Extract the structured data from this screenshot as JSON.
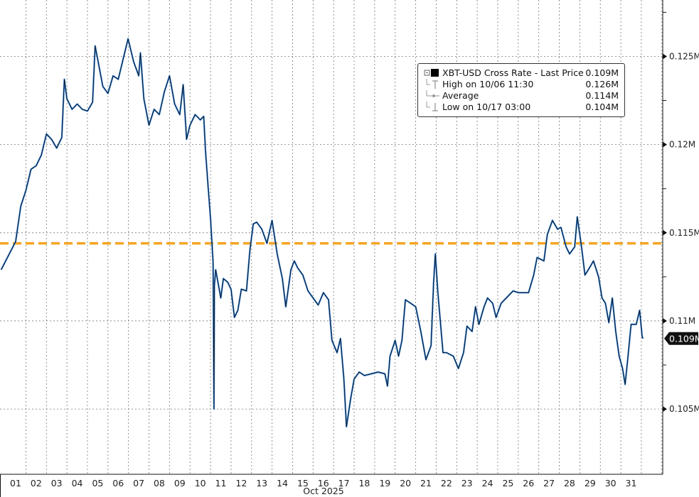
{
  "chart_data": {
    "type": "line",
    "xlabel": "Oct 2025",
    "ylabel": "",
    "x_tick_labels": [
      "01",
      "02",
      "03",
      "04",
      "05",
      "06",
      "07",
      "08",
      "09",
      "10",
      "11",
      "12",
      "13",
      "14",
      "15",
      "16",
      "17",
      "18",
      "19",
      "20",
      "21",
      "22",
      "23",
      "24",
      "25",
      "26",
      "27",
      "28",
      "29",
      "30",
      "31"
    ],
    "y_ticks": [
      0.105,
      0.11,
      0.115,
      0.12,
      0.125
    ],
    "y_tick_labels": [
      "0.105M",
      "0.11M",
      "0.115M",
      "0.12M",
      "0.125M"
    ],
    "ylim": [
      0.1013,
      0.1282
    ],
    "grid": true,
    "legend_placement": "top-right",
    "legend": [
      {
        "label": "XBT-USD Cross Rate - Last Price",
        "value": "0.109M",
        "icon": "filled-square"
      },
      {
        "label": "High on 10/06 11:30",
        "value": "0.126M",
        "icon": "high-marker"
      },
      {
        "label": "Average",
        "value": "0.114M",
        "icon": "average-marker"
      },
      {
        "label": "Low on 10/17 03:00",
        "value": "0.104M",
        "icon": "low-marker"
      }
    ],
    "last_price_label": "0.109M",
    "last_price": 0.109,
    "average": 0.1144,
    "colors": {
      "series": "#2f7fd8",
      "series_outline": "#0a0a0a",
      "average": "#f5a623",
      "grid": "#777777"
    },
    "series": [
      {
        "unit": "M USD",
        "points": [
          [
            "09/30 07:00",
            0.1129
          ],
          [
            "10/01 00:00",
            0.1145
          ],
          [
            "10/01 06:00",
            0.1165
          ],
          [
            "10/01 12:00",
            0.1174
          ],
          [
            "10/01 18:00",
            0.1186
          ],
          [
            "10/02 00:00",
            0.1188
          ],
          [
            "10/02 06:00",
            0.1194
          ],
          [
            "10/02 12:00",
            0.1206
          ],
          [
            "10/02 18:00",
            0.1203
          ],
          [
            "10/03 00:00",
            0.1198
          ],
          [
            "10/03 06:00",
            0.1204
          ],
          [
            "10/03 09:00",
            0.1237
          ],
          [
            "10/03 12:00",
            0.1226
          ],
          [
            "10/03 18:00",
            0.122
          ],
          [
            "10/04 00:00",
            0.1223
          ],
          [
            "10/04 06:00",
            0.122
          ],
          [
            "10/04 12:00",
            0.1219
          ],
          [
            "10/04 18:00",
            0.1224
          ],
          [
            "10/04 21:00",
            0.1256
          ],
          [
            "10/05 06:00",
            0.1233
          ],
          [
            "10/05 12:00",
            0.1229
          ],
          [
            "10/05 18:00",
            0.1239
          ],
          [
            "10/06 00:00",
            0.1237
          ],
          [
            "10/06 06:00",
            0.1249
          ],
          [
            "10/06 11:30",
            0.126
          ],
          [
            "10/06 18:00",
            0.1247
          ],
          [
            "10/07 00:00",
            0.1239
          ],
          [
            "10/07 02:00",
            0.1252
          ],
          [
            "10/07 06:00",
            0.1226
          ],
          [
            "10/07 12:00",
            0.1211
          ],
          [
            "10/07 18:00",
            0.122
          ],
          [
            "10/08 00:00",
            0.1217
          ],
          [
            "10/08 06:00",
            0.123
          ],
          [
            "10/08 12:00",
            0.1239
          ],
          [
            "10/08 18:00",
            0.1223
          ],
          [
            "10/09 00:00",
            0.1217
          ],
          [
            "10/09 04:00",
            0.1234
          ],
          [
            "10/09 08:00",
            0.1203
          ],
          [
            "10/09 12:00",
            0.1211
          ],
          [
            "10/09 18:00",
            0.1217
          ],
          [
            "10/10 00:00",
            0.1214
          ],
          [
            "10/10 04:00",
            0.1216
          ],
          [
            "10/10 06:00",
            0.1197
          ],
          [
            "10/10 09:00",
            0.1177
          ],
          [
            "10/10 12:00",
            0.1158
          ],
          [
            "10/10 15:00",
            0.1133
          ],
          [
            "10/10 16:00",
            0.105
          ],
          [
            "10/10 16:30",
            0.112
          ],
          [
            "10/10 18:00",
            0.1129
          ],
          [
            "10/11 00:00",
            0.1113
          ],
          [
            "10/11 03:00",
            0.1124
          ],
          [
            "10/11 08:00",
            0.1122
          ],
          [
            "10/11 12:00",
            0.1118
          ],
          [
            "10/11 16:00",
            0.1102
          ],
          [
            "10/11 20:00",
            0.1106
          ],
          [
            "10/12 00:00",
            0.1118
          ],
          [
            "10/12 06:00",
            0.1117
          ],
          [
            "10/12 10:00",
            0.114
          ],
          [
            "10/12 14:00",
            0.1155
          ],
          [
            "10/12 18:00",
            0.1156
          ],
          [
            "10/13 00:00",
            0.1152
          ],
          [
            "10/13 06:00",
            0.1144
          ],
          [
            "10/13 12:00",
            0.1157
          ],
          [
            "10/13 18:00",
            0.1138
          ],
          [
            "10/14 00:00",
            0.1124
          ],
          [
            "10/14 04:00",
            0.1108
          ],
          [
            "10/14 10:00",
            0.1129
          ],
          [
            "10/14 14:00",
            0.1134
          ],
          [
            "10/14 18:00",
            0.113
          ],
          [
            "10/15 00:00",
            0.1126
          ],
          [
            "10/15 06:00",
            0.1117
          ],
          [
            "10/15 12:00",
            0.1113
          ],
          [
            "10/15 18:00",
            0.1109
          ],
          [
            "10/16 00:00",
            0.1116
          ],
          [
            "10/16 06:00",
            0.1112
          ],
          [
            "10/16 10:00",
            0.1089
          ],
          [
            "10/16 16:00",
            0.1082
          ],
          [
            "10/16 20:00",
            0.109
          ],
          [
            "10/17 00:00",
            0.1067
          ],
          [
            "10/17 03:00",
            0.104
          ],
          [
            "10/17 08:00",
            0.1056
          ],
          [
            "10/17 12:00",
            0.1067
          ],
          [
            "10/17 18:00",
            0.1071
          ],
          [
            "10/18 00:00",
            0.1069
          ],
          [
            "10/18 08:00",
            0.107
          ],
          [
            "10/18 16:00",
            0.1071
          ],
          [
            "10/19 00:00",
            0.107
          ],
          [
            "10/19 03:00",
            0.1063
          ],
          [
            "10/19 06:00",
            0.108
          ],
          [
            "10/19 12:00",
            0.1089
          ],
          [
            "10/19 16:00",
            0.108
          ],
          [
            "10/19 20:00",
            0.1089
          ],
          [
            "10/20 00:00",
            0.1112
          ],
          [
            "10/20 06:00",
            0.111
          ],
          [
            "10/20 12:00",
            0.1108
          ],
          [
            "10/20 18:00",
            0.1094
          ],
          [
            "10/21 00:00",
            0.1078
          ],
          [
            "10/21 06:00",
            0.1086
          ],
          [
            "10/21 09:00",
            0.1122
          ],
          [
            "10/21 11:00",
            0.1138
          ],
          [
            "10/21 14:00",
            0.1116
          ],
          [
            "10/21 20:00",
            0.1082
          ],
          [
            "10/22 00:00",
            0.1082
          ],
          [
            "10/22 08:00",
            0.108
          ],
          [
            "10/22 14:00",
            0.1073
          ],
          [
            "10/22 20:00",
            0.1082
          ],
          [
            "10/23 00:00",
            0.1097
          ],
          [
            "10/23 06:00",
            0.1094
          ],
          [
            "10/23 10:00",
            0.1108
          ],
          [
            "10/23 14:00",
            0.1098
          ],
          [
            "10/23 20:00",
            0.1108
          ],
          [
            "10/24 00:00",
            0.1113
          ],
          [
            "10/24 06:00",
            0.111
          ],
          [
            "10/24 10:00",
            0.1102
          ],
          [
            "10/24 16:00",
            0.111
          ],
          [
            "10/24 22:00",
            0.1113
          ],
          [
            "10/25 06:00",
            0.1117
          ],
          [
            "10/25 12:00",
            0.1116
          ],
          [
            "10/25 20:00",
            0.1116
          ],
          [
            "10/26 00:00",
            0.1116
          ],
          [
            "10/26 06:00",
            0.1126
          ],
          [
            "10/26 10:00",
            0.1136
          ],
          [
            "10/26 18:00",
            0.1134
          ],
          [
            "10/26 22:00",
            0.1149
          ],
          [
            "10/27 04:00",
            0.1157
          ],
          [
            "10/27 10:00",
            0.1152
          ],
          [
            "10/27 14:00",
            0.1153
          ],
          [
            "10/27 20:00",
            0.1142
          ],
          [
            "10/28 00:00",
            0.1138
          ],
          [
            "10/28 06:00",
            0.1142
          ],
          [
            "10/28 09:00",
            0.1159
          ],
          [
            "10/28 14:00",
            0.1142
          ],
          [
            "10/28 18:00",
            0.1126
          ],
          [
            "10/28 22:00",
            0.1129
          ],
          [
            "10/29 04:00",
            0.1134
          ],
          [
            "10/29 10:00",
            0.1125
          ],
          [
            "10/29 14:00",
            0.1113
          ],
          [
            "10/29 18:00",
            0.111
          ],
          [
            "10/29 22:00",
            0.1099
          ],
          [
            "10/30 02:00",
            0.1113
          ],
          [
            "10/30 06:00",
            0.1094
          ],
          [
            "10/30 10:00",
            0.108
          ],
          [
            "10/30 14:00",
            0.1073
          ],
          [
            "10/30 17:00",
            0.1064
          ],
          [
            "10/30 20:00",
            0.1078
          ],
          [
            "10/31 00:00",
            0.1098
          ],
          [
            "10/31 06:00",
            0.1098
          ],
          [
            "10/31 10:00",
            0.1106
          ],
          [
            "10/31 13:00",
            0.1091
          ],
          [
            "10/31 14:00",
            0.109
          ]
        ]
      }
    ]
  }
}
